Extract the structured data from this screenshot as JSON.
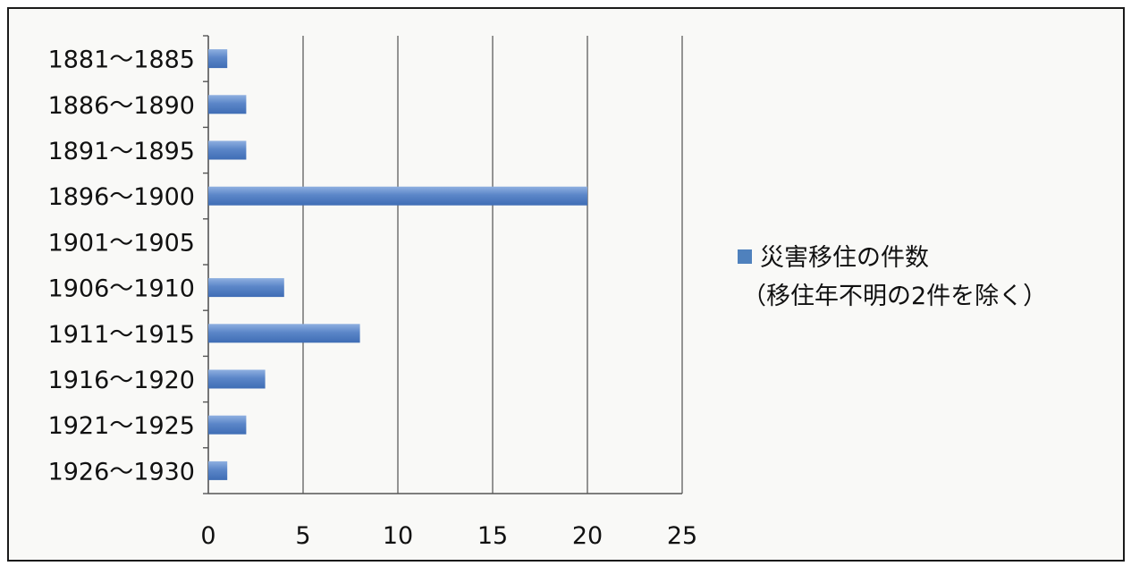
{
  "chart_data": {
    "type": "bar",
    "orientation": "horizontal",
    "categories": [
      "1881～1885",
      "1886～1890",
      "1891～1895",
      "1896～1900",
      "1901～1905",
      "1906～1910",
      "1911～1915",
      "1916～1920",
      "1921～1925",
      "1926～1930"
    ],
    "series": [
      {
        "name": "災害移住の件数",
        "name_line2": "（移住年不明の2件を除く）",
        "values": [
          1,
          2,
          2,
          20,
          0,
          4,
          8,
          3,
          2,
          1
        ]
      }
    ],
    "xlim": [
      0,
      25
    ],
    "xticks": [
      0,
      5,
      10,
      15,
      20,
      25
    ],
    "grid": "vertical",
    "legend_position": "right",
    "colors": {
      "bar": "#4f81bd",
      "bar_light": "#7da3d8",
      "grid": "#7a7a7a",
      "axis": "#555555"
    }
  }
}
